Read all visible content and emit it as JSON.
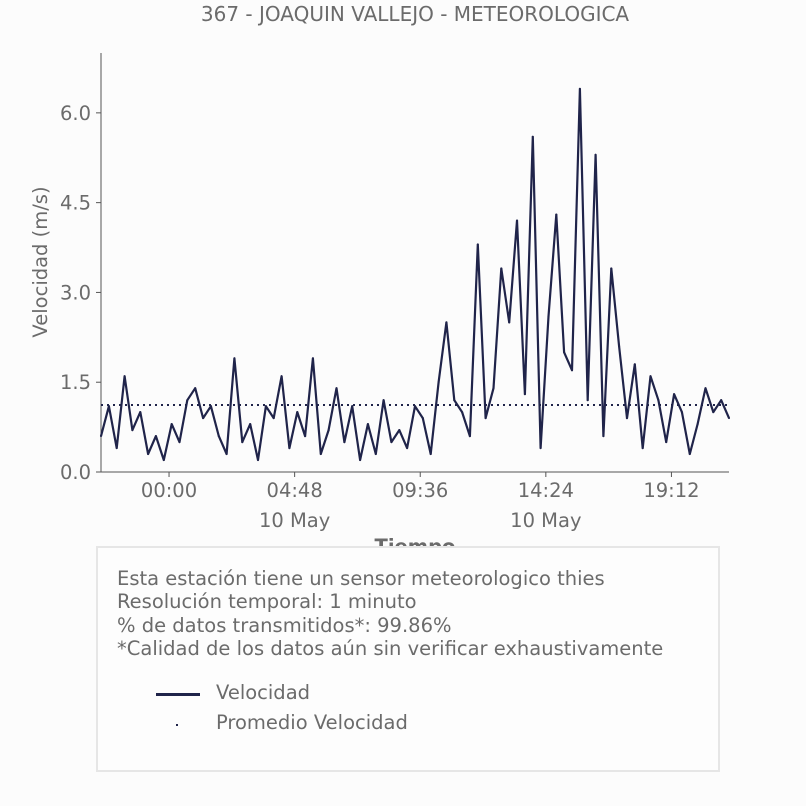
{
  "chart_data": {
    "type": "line",
    "title": "367 - JOAQUIN VALLEJO - METEOROLOGICA",
    "xlabel": "Tiempo",
    "ylabel": "Velocidad (m/s)",
    "ylim": [
      0,
      7.0
    ],
    "yticks": [
      "0.0",
      "1.5",
      "3.0",
      "4.5",
      "6.0"
    ],
    "xticks": [
      {
        "time": "00:00",
        "date": ""
      },
      {
        "time": "04:48",
        "date": "10 May"
      },
      {
        "time": "09:36",
        "date": ""
      },
      {
        "time": "14:24",
        "date": "10 May"
      },
      {
        "time": "19:12",
        "date": ""
      }
    ],
    "x_range_hours": [
      -2.6,
      21.4
    ],
    "grid": false,
    "legend_position": "below chart",
    "series": [
      {
        "name": "Velocidad",
        "style": "solid",
        "color": "#20244a",
        "x_hours": [
          -2.6,
          -2.3,
          -2.0,
          -1.7,
          -1.4,
          -1.1,
          -0.8,
          -0.5,
          -0.2,
          0.1,
          0.4,
          0.7,
          1.0,
          1.3,
          1.6,
          1.9,
          2.2,
          2.5,
          2.8,
          3.1,
          3.4,
          3.7,
          4.0,
          4.3,
          4.6,
          4.9,
          5.2,
          5.5,
          5.8,
          6.1,
          6.4,
          6.7,
          7.0,
          7.3,
          7.6,
          7.9,
          8.2,
          8.5,
          8.8,
          9.1,
          9.4,
          9.7,
          10.0,
          10.3,
          10.6,
          10.9,
          11.2,
          11.5,
          11.8,
          12.1,
          12.4,
          12.7,
          13.0,
          13.3,
          13.6,
          13.9,
          14.2,
          14.5,
          14.8,
          15.1,
          15.4,
          15.7,
          16.0,
          16.3,
          16.6,
          16.9,
          17.2,
          17.5,
          17.8,
          18.1,
          18.4,
          18.7,
          19.0,
          19.3,
          19.6,
          19.9,
          20.2,
          20.5,
          20.8,
          21.1,
          21.4
        ],
        "values": [
          0.6,
          1.1,
          0.4,
          1.6,
          0.7,
          1.0,
          0.3,
          0.6,
          0.2,
          0.8,
          0.5,
          1.2,
          1.4,
          0.9,
          1.1,
          0.6,
          0.3,
          1.9,
          0.5,
          0.8,
          0.2,
          1.1,
          0.9,
          1.6,
          0.4,
          1.0,
          0.6,
          1.9,
          0.3,
          0.7,
          1.4,
          0.5,
          1.1,
          0.2,
          0.8,
          0.3,
          1.2,
          0.5,
          0.7,
          0.4,
          1.1,
          0.9,
          0.3,
          1.5,
          2.5,
          1.2,
          1.0,
          0.6,
          3.8,
          0.9,
          1.4,
          3.4,
          2.5,
          4.2,
          1.3,
          5.6,
          0.4,
          2.6,
          4.3,
          2.0,
          1.7,
          6.4,
          1.2,
          5.3,
          0.6,
          3.4,
          2.1,
          0.9,
          1.8,
          0.4,
          1.6,
          1.2,
          0.5,
          1.3,
          1.0,
          0.3,
          0.8,
          1.4,
          1.0,
          1.2,
          0.9
        ]
      },
      {
        "name": "Promedio Velocidad",
        "style": "dotted",
        "color": "#20244a",
        "value": 1.12
      }
    ]
  },
  "info": {
    "line1": "Esta estación tiene un sensor meteorologico thies",
    "line2": "Resolución temporal: 1 minuto",
    "line3": "% de datos transmitidos*: 99.86%",
    "line4": "*Calidad de los datos aún sin verificar exhaustivamente"
  },
  "legend": {
    "item1": "Velocidad",
    "item2": "Promedio Velocidad"
  }
}
